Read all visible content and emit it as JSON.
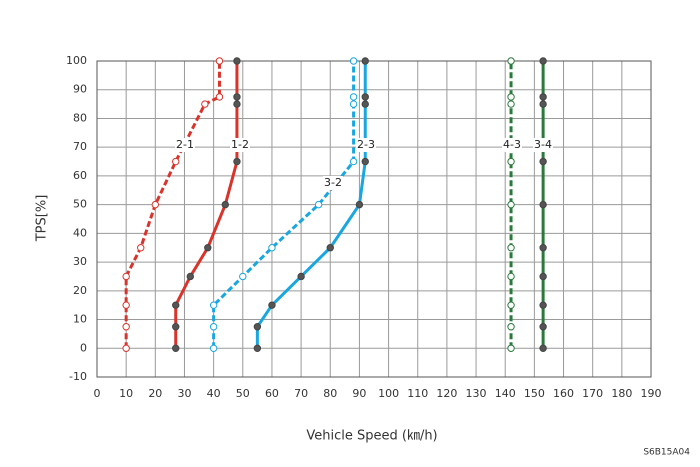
{
  "chart_data": {
    "type": "line",
    "x_label": "Vehicle Speed (㎞/h)",
    "y_label": "TPS[%]",
    "code": "S6B15A04",
    "xlim": [
      0,
      190
    ],
    "xticks": [
      0,
      10,
      20,
      30,
      40,
      50,
      60,
      70,
      80,
      90,
      100,
      110,
      120,
      130,
      140,
      150,
      160,
      170,
      180,
      190
    ],
    "ylim": [
      -10,
      100
    ],
    "yticks": [
      -10,
      0,
      10,
      20,
      30,
      40,
      50,
      60,
      70,
      80,
      90,
      100
    ],
    "grid": true,
    "series": [
      {
        "name": "2-1",
        "color": "#d9342b",
        "line_style": "dashed",
        "marker": "open",
        "x": [
          10,
          10,
          10,
          10,
          15,
          20,
          27,
          37,
          42,
          42
        ],
        "values": [
          0,
          7.5,
          15,
          25,
          35,
          50,
          65,
          85,
          87.5,
          100
        ]
      },
      {
        "name": "1-2",
        "color": "#d9342b",
        "line_style": "solid",
        "marker": "filled",
        "x": [
          27,
          27,
          27,
          32,
          38,
          44,
          48,
          48,
          48,
          48
        ],
        "values": [
          0,
          7.5,
          15,
          25,
          35,
          50,
          65,
          85,
          87.5,
          100
        ]
      },
      {
        "name": "3-2",
        "color": "#1aa7e0",
        "line_style": "dashed",
        "marker": "open",
        "x": [
          40,
          40,
          40,
          50,
          60,
          76,
          88,
          88,
          88,
          88
        ],
        "values": [
          0,
          7.5,
          15,
          25,
          35,
          50,
          65,
          85,
          87.5,
          100
        ]
      },
      {
        "name": "2-3",
        "color": "#1aa7e0",
        "line_style": "solid",
        "marker": "filled",
        "x": [
          55,
          55,
          60,
          70,
          80,
          90,
          92,
          92,
          92,
          92
        ],
        "values": [
          0,
          7.5,
          15,
          25,
          35,
          50,
          65,
          85,
          87.5,
          100
        ]
      },
      {
        "name": "4-3",
        "color": "#2a7a3b",
        "line_style": "dashed",
        "marker": "open",
        "x": [
          142,
          142,
          142,
          142,
          142,
          142,
          142,
          142,
          142,
          142
        ],
        "values": [
          0,
          7.5,
          15,
          25,
          35,
          50,
          65,
          85,
          87.5,
          100
        ]
      },
      {
        "name": "3-4",
        "color": "#2a7a3b",
        "line_style": "solid",
        "marker": "filled",
        "x": [
          153,
          153,
          153,
          153,
          153,
          153,
          153,
          153,
          153,
          153
        ],
        "values": [
          0,
          7.5,
          15,
          25,
          35,
          50,
          65,
          85,
          87.5,
          100
        ]
      }
    ]
  }
}
